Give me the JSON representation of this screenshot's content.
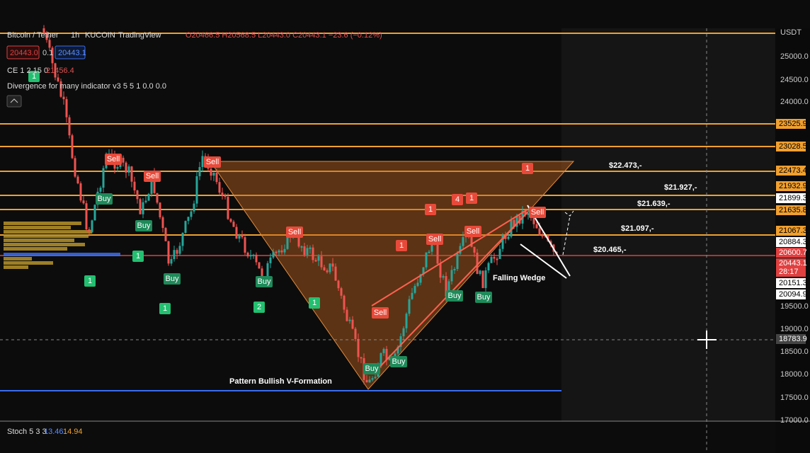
{
  "header": {
    "symbol": "Bitcoin / Tether",
    "interval": "1h",
    "exchange": "KUCOIN",
    "platform": "TradingView",
    "ohlc": "O20466.5 H20568.5 L20443.0 C20443.1 −23.6 (−0.12%)"
  },
  "quote": {
    "bid": "20443.0",
    "qty": "0.1",
    "ask": "20443.1"
  },
  "indicators": {
    "ce_label": "CE 1 2.15 0",
    "ce_value": "21456.4",
    "divergence": "Divergence for many indicator v3 5 5 1 0.0 0.0"
  },
  "currency": "USDT",
  "price_axis": [
    "25000.0",
    "24500.0",
    "24000.0",
    "19500.0",
    "19000.0",
    "18500.0",
    "18000.0",
    "17500.0",
    "17000.0"
  ],
  "price_tags": [
    "23525.9",
    "23028.5",
    "22473.4",
    "21932.9",
    "21899.3",
    "21635.8",
    "21067.3",
    "20884.3",
    "20600.7",
    "20443.1",
    "28:17",
    "20151.3",
    "20094.9",
    "18783.9"
  ],
  "levels": [
    "$22.473,-",
    "$21.927,-",
    "$21.639,-",
    "$21.097,-",
    "$20.465,-"
  ],
  "annotations": {
    "pattern": "Pattern Bullish V-Formation",
    "wedge": "Falling Wedge"
  },
  "signals": [
    "Sell",
    "Sell",
    "Sell",
    "Sell",
    "Sell",
    "Sell",
    "Sell",
    "Sell",
    "Buy",
    "Buy",
    "Buy",
    "Buy",
    "Buy",
    "Buy",
    "Buy",
    "Buy",
    "1",
    "1",
    "4",
    "1",
    "1",
    "1",
    "1",
    "1",
    "1",
    "2",
    "1"
  ],
  "stoch": {
    "label": "Stoch 5 3 3",
    "k": "13.46",
    "d": "14.94"
  }
}
